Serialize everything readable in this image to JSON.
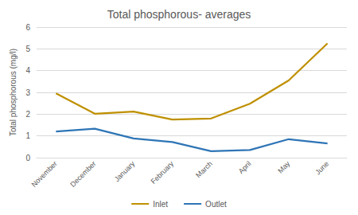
{
  "chart_data": {
    "type": "line",
    "title": "Total phosphorous- averages",
    "y_label": "Total phosphorous (mg/l)",
    "categories": [
      "November",
      "December",
      "January",
      "February",
      "March",
      "April",
      "May",
      "June"
    ],
    "series": [
      {
        "name": "Inlet",
        "color": "#bf9000",
        "values": [
          2.95,
          2.02,
          2.12,
          1.75,
          1.8,
          2.48,
          3.55,
          5.25
        ]
      },
      {
        "name": "Outlet",
        "color": "#2e75b6",
        "values": [
          1.2,
          1.33,
          0.88,
          0.72,
          0.3,
          0.35,
          0.85,
          0.65
        ]
      }
    ],
    "ylim": [
      0,
      6
    ],
    "yticks": [
      0,
      1,
      2,
      3,
      4,
      5,
      6
    ],
    "grid": true,
    "legend": "bottom"
  }
}
